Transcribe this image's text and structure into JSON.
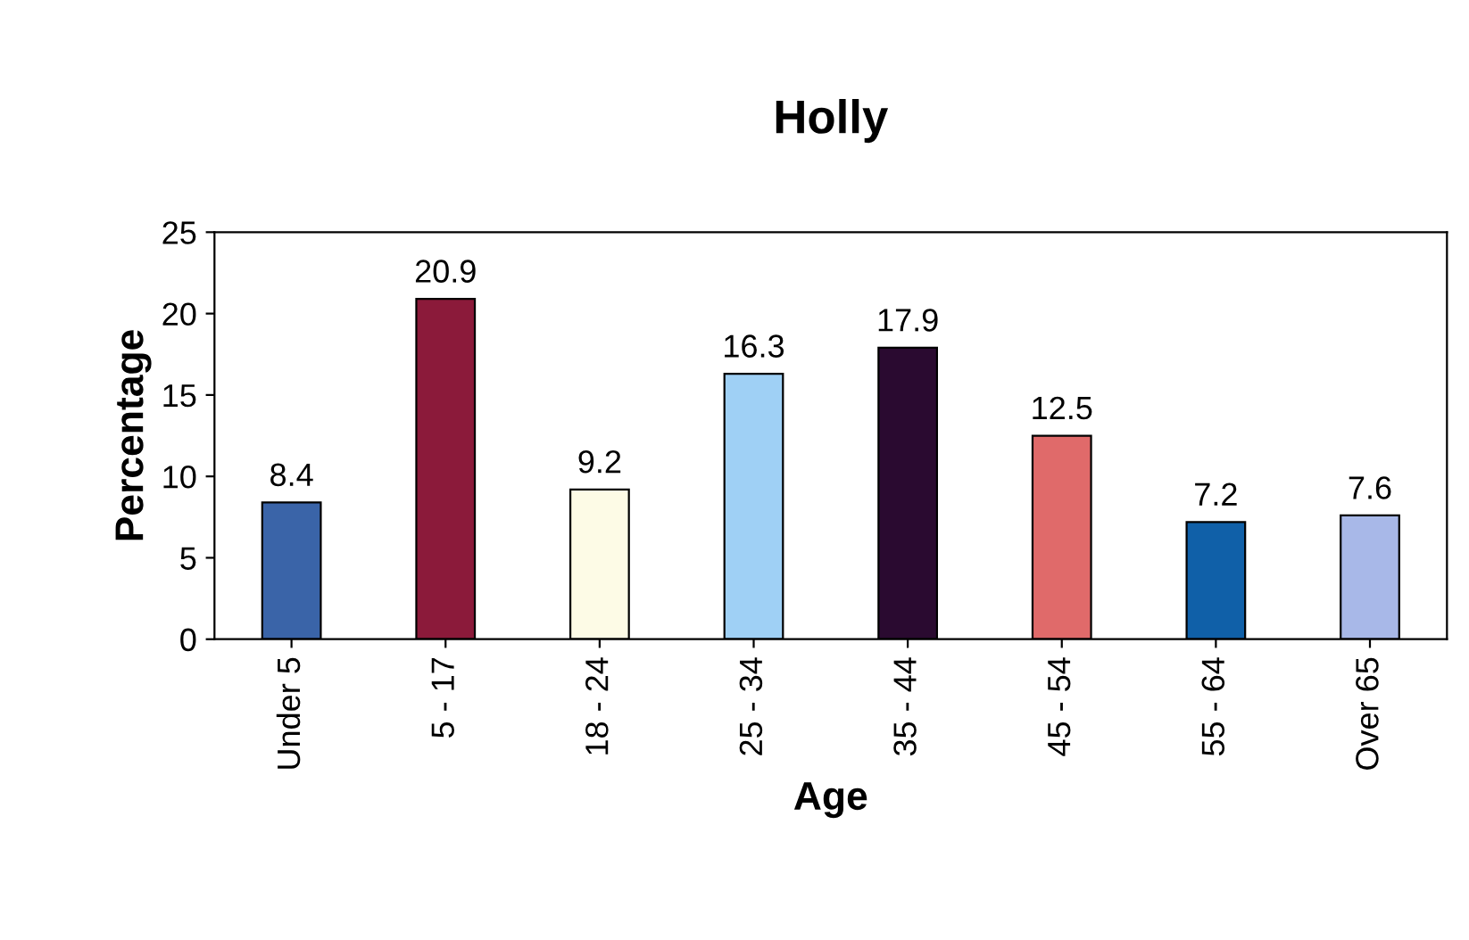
{
  "chart_data": {
    "type": "bar",
    "title": "Holly",
    "xlabel": "Age",
    "ylabel": "Percentage",
    "categories": [
      "Under 5",
      "5 - 17",
      "18 - 24",
      "25 - 34",
      "35 - 44",
      "45 - 54",
      "55 - 64",
      "Over 65"
    ],
    "values": [
      8.4,
      20.9,
      9.2,
      16.3,
      17.9,
      12.5,
      7.2,
      7.6
    ],
    "colors": [
      "#3a64a8",
      "#8b1a3a",
      "#fdfbe6",
      "#9fd0f5",
      "#2a0a30",
      "#e06a6a",
      "#1060a8",
      "#a8b8e8"
    ],
    "ylim": [
      0,
      25
    ],
    "yticks": [
      0,
      5,
      10,
      15,
      20,
      25
    ],
    "grid": false,
    "data_labels": true
  }
}
